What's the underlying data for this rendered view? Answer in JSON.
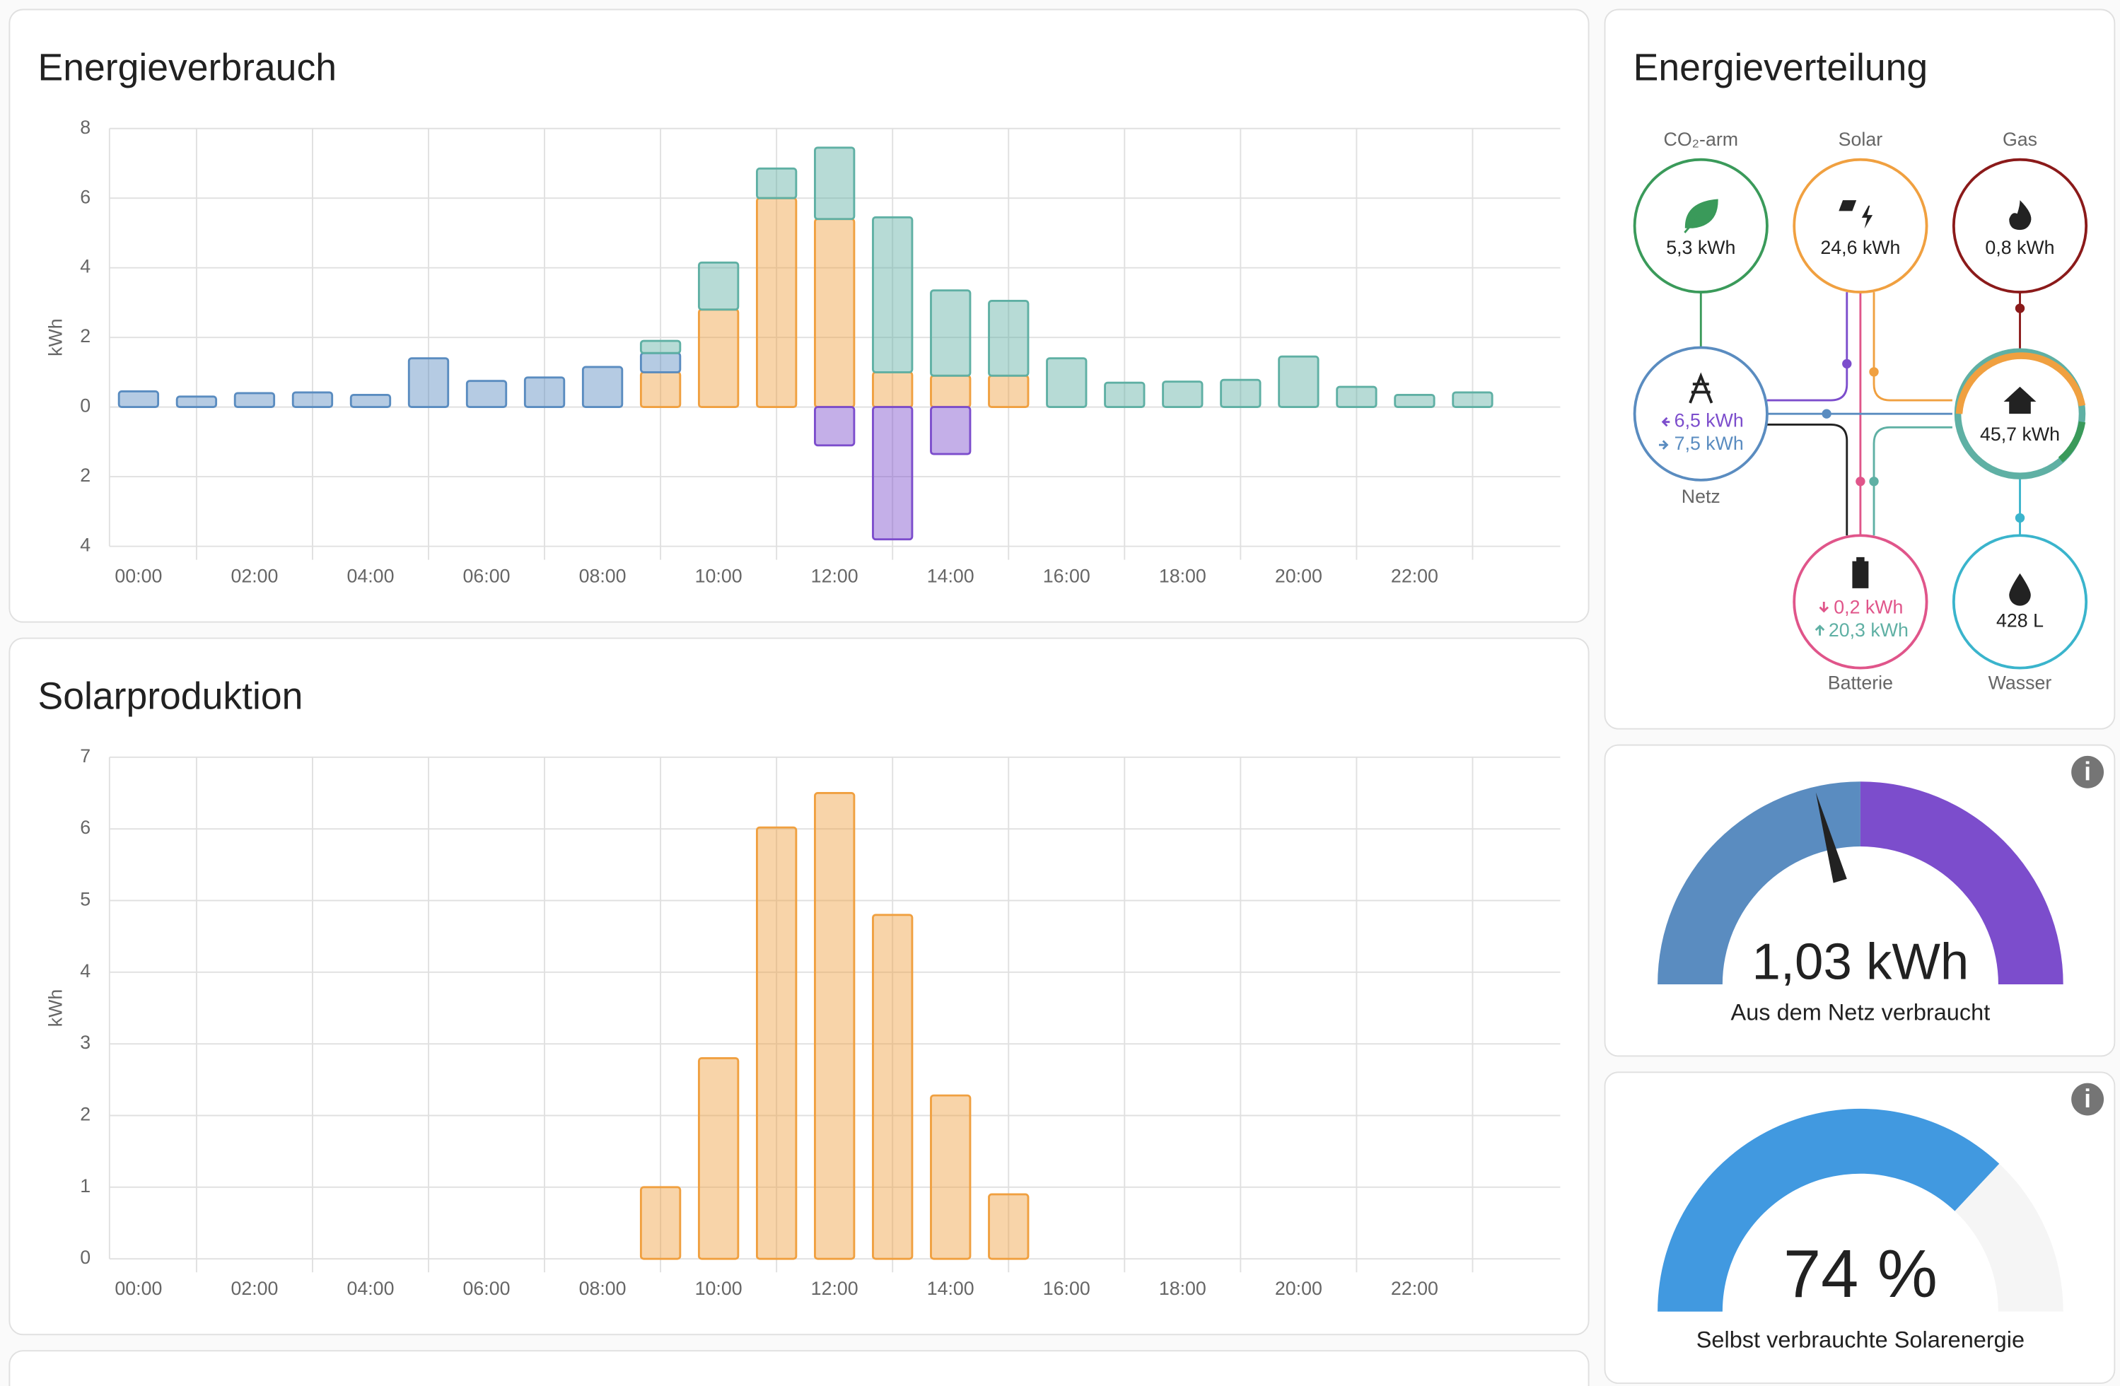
{
  "chart_data": [
    {
      "type": "bar",
      "title": "Energieverbrauch",
      "y_label": "kWh",
      "stacked": true,
      "categories": [
        "00:00",
        null,
        "02:00",
        null,
        "04:00",
        null,
        "06:00",
        null,
        "08:00",
        null,
        "10:00",
        null,
        "12:00",
        null,
        "14:00",
        null,
        "16:00",
        null,
        "18:00",
        null,
        "20:00",
        null,
        "22:00",
        null
      ],
      "series": [
        {
          "color": "#f0a040",
          "values": [
            null,
            null,
            null,
            null,
            null,
            null,
            null,
            null,
            null,
            1.0,
            2.8,
            6.0,
            5.4,
            1.0,
            0.9,
            0.9,
            null,
            null,
            null,
            null,
            null,
            null,
            null,
            null
          ]
        },
        {
          "color": "#5a8cc0",
          "values": [
            0.45,
            0.3,
            0.4,
            0.42,
            0.35,
            1.4,
            0.75,
            0.85,
            1.15,
            0.55,
            null,
            null,
            null,
            null,
            null,
            null,
            null,
            null,
            null,
            null,
            null,
            null,
            null,
            null
          ]
        },
        {
          "color": "#5fb0a4",
          "values": [
            null,
            null,
            null,
            null,
            null,
            null,
            null,
            null,
            null,
            0.35,
            1.35,
            0.85,
            2.05,
            4.45,
            2.45,
            2.15,
            1.4,
            0.7,
            0.73,
            0.78,
            1.45,
            0.58,
            0.35,
            0.42
          ]
        },
        {
          "color": "#7c4dcc",
          "values": [
            null,
            null,
            null,
            null,
            null,
            null,
            null,
            null,
            null,
            null,
            null,
            null,
            -1.1,
            -3.8,
            -1.35,
            null,
            null,
            null,
            null,
            null,
            null,
            null,
            null,
            null
          ]
        }
      ],
      "ylim": [
        -4,
        8
      ],
      "yticks": [
        8,
        6,
        4,
        2,
        0,
        {
          "value": -2,
          "label": "2"
        },
        {
          "value": -4,
          "label": "4"
        }
      ],
      "grid": true
    },
    {
      "type": "bar",
      "title": "Solarproduktion",
      "y_label": "kWh",
      "categories": [
        "00:00",
        null,
        "02:00",
        null,
        "04:00",
        null,
        "06:00",
        null,
        "08:00",
        null,
        "10:00",
        null,
        "12:00",
        null,
        "14:00",
        null,
        "16:00",
        null,
        "18:00",
        null,
        "20:00",
        null,
        "22:00",
        null
      ],
      "series": [
        {
          "color": "#f0a040",
          "values": [
            null,
            null,
            null,
            null,
            null,
            null,
            null,
            null,
            null,
            1.0,
            2.8,
            6.02,
            6.5,
            4.8,
            2.28,
            0.9,
            null,
            null,
            null,
            null,
            null,
            null,
            null,
            null
          ]
        }
      ],
      "ylim": [
        0,
        7
      ],
      "yticks": [
        0,
        1,
        2,
        3,
        4,
        5,
        6,
        7
      ],
      "grid": true
    }
  ],
  "distribution": {
    "title": "Energieverteilung",
    "low_carbon": {
      "label": "CO₂-arm",
      "value": "5,3 kWh"
    },
    "solar": {
      "label": "Solar",
      "value": "24,6 kWh"
    },
    "gas": {
      "label": "Gas",
      "value": "0,8 kWh"
    },
    "grid": {
      "label": "Netz",
      "returned": "6,5 kWh",
      "consumed": "7,5 kWh"
    },
    "home": {
      "value": "45,7 kWh"
    },
    "battery": {
      "label": "Batterie",
      "charged": "0,2 kWh",
      "discharged": "20,3 kWh"
    },
    "water": {
      "label": "Wasser",
      "value": "428 L"
    }
  },
  "gauges": [
    {
      "value_label": "1,03 kWh",
      "name": "Aus dem Netz verbraucht"
    },
    {
      "value": 74,
      "value_label": "74 %",
      "lim": [
        0,
        100
      ],
      "name": "Selbst verbrauchte Solarenergie"
    }
  ]
}
